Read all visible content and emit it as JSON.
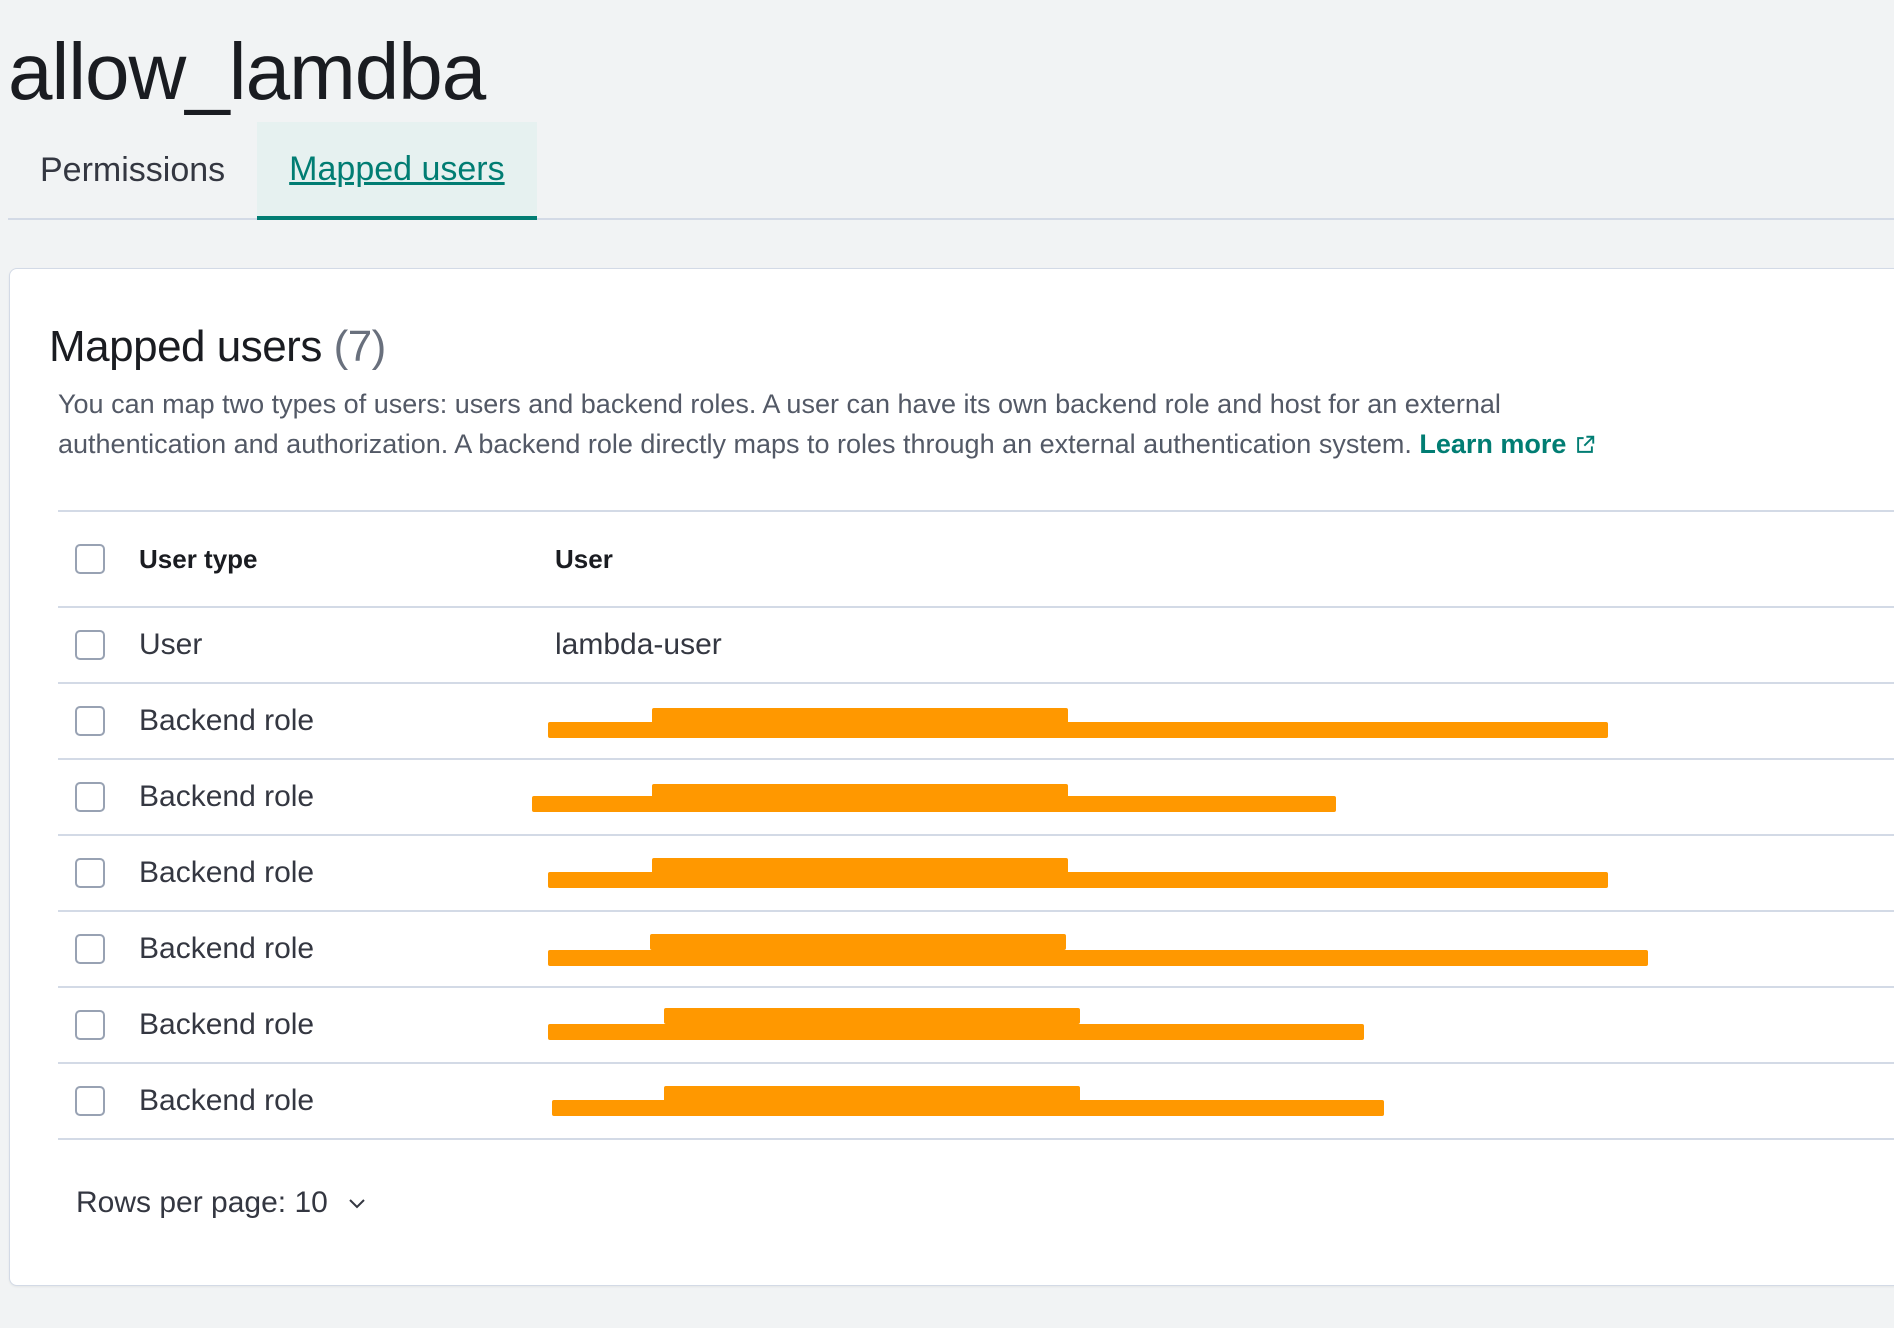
{
  "page": {
    "title": "allow_lamdba"
  },
  "tabs": [
    {
      "label": "Permissions",
      "active": false
    },
    {
      "label": "Mapped users",
      "active": true
    }
  ],
  "section": {
    "title": "Mapped users",
    "count": "(7)",
    "description": "You can map two types of users: users and backend roles. A user can have its own backend role and host for an external authentication and authorization. A backend role directly maps to roles through an external authentication system.",
    "learn_more": "Learn more",
    "learn_more_icon": "external-link-icon"
  },
  "table": {
    "columns": [
      "User type",
      "User"
    ],
    "rows": [
      {
        "type": "User",
        "user": "lambda-user",
        "redacted": false
      },
      {
        "type": "Backend role",
        "user": "",
        "redacted": true
      },
      {
        "type": "Backend role",
        "user": "",
        "redacted": true
      },
      {
        "type": "Backend role",
        "user": "",
        "redacted": true
      },
      {
        "type": "Backend role",
        "user": "",
        "redacted": true
      },
      {
        "type": "Backend role",
        "user": "",
        "redacted": true
      },
      {
        "type": "Backend role",
        "user": "",
        "redacted": true
      }
    ]
  },
  "pagination": {
    "rows_per_page": "Rows per page: 10",
    "icon": "chevron-down-icon"
  },
  "colors": {
    "accent": "#017d73",
    "redaction": "#ff9800"
  }
}
